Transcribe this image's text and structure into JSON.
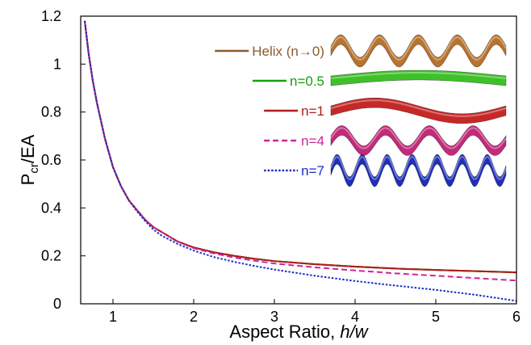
{
  "chart_data": {
    "type": "line",
    "xlabel_main": "Aspect Ratio, ",
    "xlabel_italic": "h/w",
    "ylabel_main": "P",
    "ylabel_sub": "cr",
    "ylabel_rest": "/EA",
    "xlim": [
      0.6,
      6
    ],
    "ylim": [
      0,
      1.2
    ],
    "x_ticks": [
      "1",
      "2",
      "3",
      "4",
      "5",
      "6"
    ],
    "y_ticks": [
      "0",
      "0.2",
      "0.4",
      "0.6",
      "0.8",
      "1",
      "1.2"
    ],
    "x": [
      0.65,
      0.7,
      0.75,
      0.8,
      0.9,
      1.0,
      1.1,
      1.2,
      1.3,
      1.4,
      1.5,
      1.6,
      1.8,
      2.0,
      2.25,
      2.5,
      2.75,
      3.0,
      3.5,
      4.0,
      4.5,
      5.0,
      5.5,
      6.0
    ],
    "series": [
      {
        "name": "Helix (n→0)",
        "color": "#8b5a2b",
        "dash": "solid",
        "values": [
          1.18,
          1.04,
          0.93,
          0.84,
          0.69,
          0.57,
          0.49,
          0.43,
          0.39,
          0.35,
          0.32,
          0.3,
          0.26,
          0.235,
          0.215,
          0.2,
          0.188,
          0.178,
          0.165,
          0.155,
          0.147,
          0.141,
          0.136,
          0.131
        ]
      },
      {
        "name": "n=0.5",
        "color": "#13a010",
        "dash": "solid",
        "values": [
          1.18,
          1.04,
          0.93,
          0.84,
          0.69,
          0.57,
          0.49,
          0.43,
          0.39,
          0.35,
          0.32,
          0.3,
          0.26,
          0.235,
          0.215,
          0.2,
          0.188,
          0.178,
          0.165,
          0.155,
          0.147,
          0.141,
          0.136,
          0.131
        ]
      },
      {
        "name": "n=1",
        "color": "#b01c1c",
        "dash": "solid",
        "values": [
          1.18,
          1.04,
          0.93,
          0.84,
          0.69,
          0.57,
          0.49,
          0.43,
          0.39,
          0.35,
          0.32,
          0.3,
          0.26,
          0.235,
          0.215,
          0.2,
          0.188,
          0.178,
          0.165,
          0.155,
          0.147,
          0.141,
          0.136,
          0.131
        ]
      },
      {
        "name": "n=4",
        "color": "#d0249a",
        "dash": "dashed",
        "values": [
          1.18,
          1.04,
          0.93,
          0.84,
          0.69,
          0.57,
          0.49,
          0.43,
          0.39,
          0.35,
          0.32,
          0.3,
          0.26,
          0.232,
          0.21,
          0.193,
          0.18,
          0.168,
          0.152,
          0.139,
          0.127,
          0.117,
          0.107,
          0.097
        ]
      },
      {
        "name": "n=7",
        "color": "#1a2fc9",
        "dash": "dotted",
        "values": [
          1.18,
          1.04,
          0.93,
          0.84,
          0.69,
          0.57,
          0.49,
          0.43,
          0.385,
          0.345,
          0.31,
          0.285,
          0.25,
          0.222,
          0.195,
          0.175,
          0.158,
          0.143,
          0.117,
          0.095,
          0.076,
          0.058,
          0.037,
          0.012
        ]
      }
    ],
    "legend": [
      {
        "label": "Helix (n→0)",
        "color": "#8b5a2b",
        "dash": "solid",
        "label_color": "#8b5a2b",
        "ribbon": {
          "color": "#b8732e",
          "cycles": 4.5,
          "amp": 0.5
        }
      },
      {
        "label": "n=0.5",
        "color": "#13a010",
        "dash": "solid",
        "label_color": "#13a010",
        "ribbon": {
          "color": "#3fc02a",
          "cycles": 0.5,
          "amp": 0.25
        }
      },
      {
        "label": "n=1",
        "color": "#b01c1c",
        "dash": "solid",
        "label_color": "#b01c1c",
        "ribbon": {
          "color": "#c62828",
          "cycles": 1,
          "amp": 0.35
        }
      },
      {
        "label": "n=4",
        "color": "#d0249a",
        "dash": "dashed",
        "label_color": "#d0249a",
        "ribbon": {
          "color": "#c22a7a",
          "cycles": 4,
          "amp": 0.45
        }
      },
      {
        "label": "n=7",
        "color": "#1a2fc9",
        "dash": "dotted",
        "label_color": "#1a2fc9",
        "ribbon": {
          "color": "#1f2fb8",
          "cycles": 7,
          "amp": 0.5
        }
      }
    ],
    "grid": false,
    "legend_position": "top-right"
  }
}
